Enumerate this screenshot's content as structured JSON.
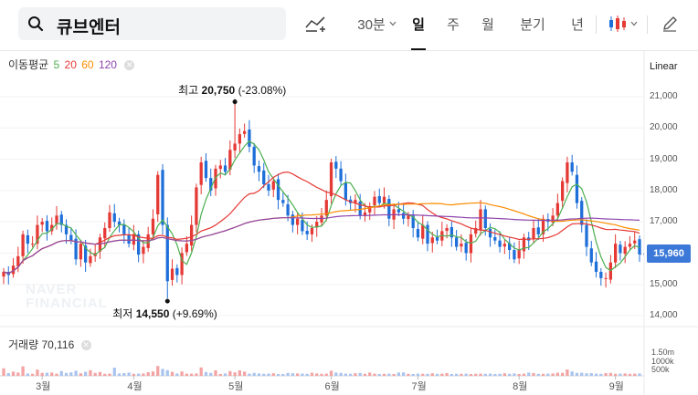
{
  "search": {
    "query": "큐브엔터"
  },
  "toolbar": {
    "interval": "30분",
    "periods": [
      "일",
      "주",
      "월",
      "분기",
      "년"
    ],
    "active_period": "일"
  },
  "legend": {
    "title": "이동평균",
    "ma": [
      {
        "label": "5",
        "color": "#4caf50"
      },
      {
        "label": "20",
        "color": "#e53935"
      },
      {
        "label": "60",
        "color": "#fb8c00"
      },
      {
        "label": "120",
        "color": "#8e44ad"
      }
    ]
  },
  "scale_mode": "Linear",
  "current_price": "15,960",
  "annotations": {
    "high": {
      "prefix": "최고",
      "value": "20,750",
      "change": "(-23.08%)"
    },
    "low": {
      "prefix": "최저",
      "value": "14,550",
      "change": "(+9.69%)"
    }
  },
  "volume": {
    "label": "거래량",
    "value": "70,116",
    "axis": [
      "1.50m",
      "1000k",
      "500k"
    ]
  },
  "watermark": [
    "NAVER",
    "FINANCIAL"
  ],
  "colors": {
    "up": "#e53935",
    "down": "#1e6fd9",
    "accent": "#3b78d8"
  },
  "chart_data": {
    "type": "candlestick",
    "y_ticks": [
      "21,000",
      "20,000",
      "19,000",
      "18,000",
      "17,000",
      "16,000",
      "15,000",
      "14,000"
    ],
    "y_tick_values": [
      21000,
      20000,
      19000,
      18000,
      17000,
      16000,
      15000,
      14000
    ],
    "ylim": [
      13850,
      21550
    ],
    "x_months": [
      "3월",
      "4월",
      "5월",
      "6월",
      "7월",
      "8월",
      "9월"
    ],
    "x_month_index": [
      8,
      27,
      48,
      68,
      86,
      107,
      127
    ],
    "high_marker": {
      "index": 48,
      "value": 20750
    },
    "low_marker": {
      "index": 34,
      "value": 14550
    },
    "last_close": 15960,
    "closes": [
      15400,
      15300,
      15600,
      15900,
      16600,
      16300,
      16300,
      16900,
      17000,
      16700,
      16900,
      17200,
      16900,
      16600,
      16400,
      15800,
      16300,
      15700,
      15900,
      16000,
      16500,
      16800,
      17300,
      17000,
      16900,
      16600,
      16300,
      16600,
      15950,
      16200,
      16600,
      17100,
      18500,
      16900,
      15100,
      15500,
      15300,
      16000,
      16300,
      16900,
      18100,
      18900,
      18400,
      18000,
      18700,
      18800,
      18600,
      19300,
      19500,
      19800,
      19900,
      19400,
      18800,
      18600,
      18200,
      18000,
      18300,
      17700,
      17600,
      17200,
      16900,
      17100,
      16700,
      16600,
      16800,
      17000,
      17200,
      17700,
      18900,
      18700,
      18300,
      17700,
      17600,
      17700,
      17200,
      17300,
      17500,
      17800,
      17600,
      17800,
      17100,
      17400,
      17300,
      17100,
      17200,
      16800,
      16500,
      16900,
      16300,
      16500,
      16400,
      16700,
      16800,
      16500,
      16200,
      16300,
      16000,
      16600,
      16800,
      17400,
      16800,
      16500,
      16400,
      16200,
      16300,
      16100,
      15800,
      16100,
      16500,
      16400,
      16800,
      16600,
      17100,
      17000,
      17200,
      17600,
      18300,
      18900,
      18600,
      17600,
      16900,
      16200,
      15700,
      15400,
      15200,
      15200,
      15700,
      16300,
      16000,
      16200,
      16300,
      16400,
      15960
    ],
    "volume_values_k": [
      410,
      150,
      230,
      180,
      520,
      130,
      110,
      340,
      160,
      170,
      180,
      120,
      260,
      160,
      190,
      280,
      140,
      220,
      310,
      160,
      210,
      110,
      120,
      450,
      130,
      150,
      180,
      110,
      120,
      130,
      200,
      240,
      540,
      380,
      310,
      220,
      130,
      240,
      120,
      120,
      130,
      460,
      210,
      160,
      300,
      100,
      130,
      260,
      190,
      300,
      230,
      120,
      160,
      130,
      110,
      120,
      140,
      100,
      100,
      160,
      140,
      130,
      120,
      110,
      170,
      130,
      110,
      120,
      280,
      180,
      160,
      120,
      110,
      140,
      160,
      110,
      180,
      120,
      100,
      110,
      120,
      100,
      180,
      190,
      110,
      100,
      120,
      110,
      110,
      140,
      110,
      120,
      150,
      100,
      110,
      110,
      120,
      100,
      110,
      120,
      110,
      120,
      100,
      110,
      140,
      110,
      130,
      100,
      120,
      180,
      150,
      110,
      110,
      120,
      130,
      170,
      160,
      350,
      240,
      160,
      170,
      140,
      150,
      120,
      110,
      150,
      160,
      110,
      120,
      130,
      110,
      120,
      130
    ],
    "volume_ylim_k": [
      0,
      2000
    ],
    "series": [
      {
        "name": "MA5",
        "color": "#4caf50"
      },
      {
        "name": "MA20",
        "color": "#e53935"
      },
      {
        "name": "MA60",
        "color": "#fb8c00"
      },
      {
        "name": "MA120",
        "color": "#8e44ad"
      }
    ]
  }
}
